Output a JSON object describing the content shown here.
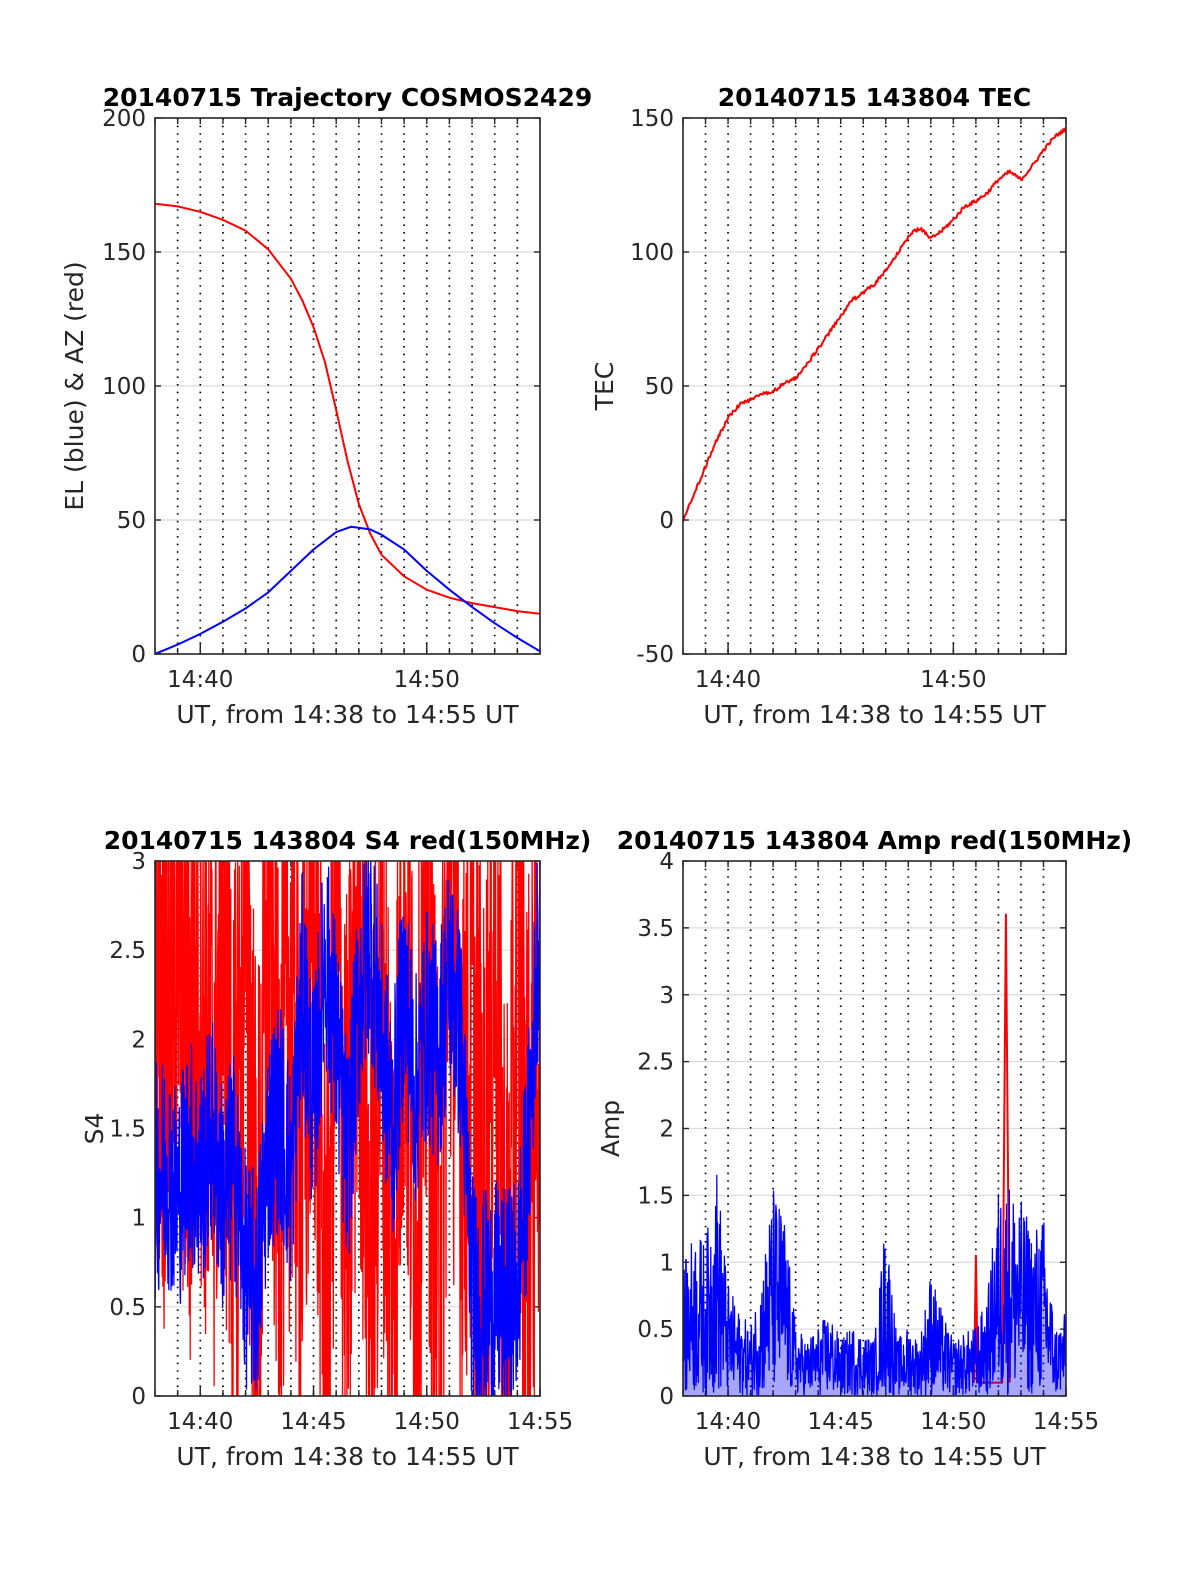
{
  "chart_data": [
    {
      "type": "line",
      "title": "20140715 Trajectory COSMOS2429",
      "xlabel": "UT, from 14:38 to 14:55 UT",
      "ylabel": "EL (blue) & AZ (red)",
      "xlim": [
        "14:38",
        "14:55"
      ],
      "xticks": [
        "14:40",
        "14:50"
      ],
      "ylim": [
        0,
        200
      ],
      "yticks": [
        "0",
        "50",
        "100",
        "150",
        "200"
      ],
      "grid": true,
      "series": [
        {
          "color": "#ff0000",
          "x": [
            "14:38:00",
            "14:39:00",
            "14:40:00",
            "14:41:00",
            "14:42:00",
            "14:43:00",
            "14:44:00",
            "14:44:30",
            "14:45:00",
            "14:45:30",
            "14:46:00",
            "14:46:30",
            "14:47:00",
            "14:47:30",
            "14:48:00",
            "14:49:00",
            "14:50:00",
            "14:51:00",
            "14:52:00",
            "14:53:00",
            "14:54:00",
            "14:55:00"
          ],
          "values": [
            168,
            167,
            165,
            162,
            158,
            151,
            140,
            132,
            122,
            109,
            91,
            72,
            56,
            45,
            37,
            29,
            24,
            21,
            19,
            17.5,
            16,
            15
          ]
        },
        {
          "color": "#0000ff",
          "x": [
            "14:38:00",
            "14:39:00",
            "14:40:00",
            "14:41:00",
            "14:42:00",
            "14:43:00",
            "14:44:00",
            "14:45:00",
            "14:46:00",
            "14:46:40",
            "14:47:30",
            "14:48:00",
            "14:49:00",
            "14:50:00",
            "14:51:00",
            "14:52:00",
            "14:53:00",
            "14:54:00",
            "14:55:00"
          ],
          "values": [
            0,
            3.5,
            7.5,
            12,
            17,
            23,
            31,
            39,
            45.5,
            47.5,
            46.5,
            44.5,
            39,
            31,
            24,
            17.5,
            11.5,
            6,
            1
          ]
        }
      ]
    },
    {
      "type": "line",
      "title": "20140715 143804 TEC",
      "xlabel": "UT, from 14:38 to 14:55 UT",
      "ylabel": "TEC",
      "xlim": [
        "14:38",
        "14:55"
      ],
      "xticks": [
        "14:40",
        "14:50"
      ],
      "ylim": [
        -50,
        150
      ],
      "yticks": [
        "-50",
        "0",
        "50",
        "100",
        "150"
      ],
      "grid": true,
      "series": [
        {
          "color": "#ff0000",
          "x": [
            "14:38:00",
            "14:38:30",
            "14:39:00",
            "14:39:30",
            "14:40:00",
            "14:40:30",
            "14:41:00",
            "14:41:30",
            "14:42:00",
            "14:42:30",
            "14:43:00",
            "14:43:30",
            "14:44:00",
            "14:44:30",
            "14:45:00",
            "14:45:30",
            "14:46:00",
            "14:46:30",
            "14:47:00",
            "14:47:30",
            "14:48:00",
            "14:48:30",
            "14:49:00",
            "14:49:30",
            "14:50:00",
            "14:50:30",
            "14:51:00",
            "14:51:30",
            "14:52:00",
            "14:52:30",
            "14:53:00",
            "14:53:30",
            "14:54:00",
            "14:54:30",
            "14:55:00"
          ],
          "values": [
            0,
            10,
            20,
            30,
            38,
            43,
            45,
            47,
            48,
            51,
            53,
            58,
            64,
            70,
            76,
            82,
            85,
            88,
            93,
            99,
            106,
            109,
            105,
            108,
            112,
            117,
            119,
            122,
            127,
            130,
            127,
            132,
            138,
            143,
            146
          ]
        }
      ]
    },
    {
      "type": "line",
      "title": "20140715 143804 S4 red(150MHz)",
      "xlabel": "UT, from 14:38 to 14:55 UT",
      "ylabel": "S4",
      "xlim": [
        "14:38",
        "14:55"
      ],
      "xticks": [
        "14:40",
        "14:45",
        "14:50",
        "14:55"
      ],
      "ylim": [
        0,
        3
      ],
      "yticks": [
        "0",
        "0.5",
        "1",
        "1.5",
        "2",
        "2.5",
        "3"
      ],
      "grid": true,
      "series": [
        {
          "color": "#ff0000",
          "x": [
            "14:38:00",
            "14:38:30",
            "14:39:00",
            "14:39:30",
            "14:40:00",
            "14:40:30",
            "14:41:00",
            "14:41:30",
            "14:42:00",
            "14:42:30",
            "14:43:00",
            "14:43:30",
            "14:44:00",
            "14:44:30",
            "14:45:00",
            "14:45:30",
            "14:46:00",
            "14:46:30",
            "14:47:00",
            "14:47:30",
            "14:48:00",
            "14:48:30",
            "14:49:00",
            "14:49:30",
            "14:50:00",
            "14:50:30",
            "14:51:00",
            "14:51:30",
            "14:52:00",
            "14:52:30",
            "14:53:00",
            "14:53:30",
            "14:54:00",
            "14:54:30",
            "14:55:00"
          ],
          "values": [
            2.8,
            2.1,
            2.9,
            1.8,
            2.6,
            1.6,
            2.7,
            1.0,
            3.0,
            0.3,
            2.9,
            1.4,
            2.4,
            1.3,
            3.0,
            0.2,
            2.7,
            0.8,
            3.0,
            0.5,
            2.5,
            0.6,
            2.9,
            0.7,
            2.6,
            0.4,
            3.0,
            1.8,
            2.0,
            0.9,
            2.7,
            0.3,
            2.2,
            1.1,
            2.4
          ]
        },
        {
          "color": "#0000ff",
          "x": [
            "14:38:00",
            "14:38:30",
            "14:39:00",
            "14:39:30",
            "14:40:00",
            "14:40:30",
            "14:41:00",
            "14:41:30",
            "14:42:00",
            "14:42:30",
            "14:43:00",
            "14:43:30",
            "14:44:00",
            "14:44:30",
            "14:45:00",
            "14:45:30",
            "14:46:00",
            "14:46:30",
            "14:47:00",
            "14:47:30",
            "14:48:00",
            "14:48:30",
            "14:49:00",
            "14:49:30",
            "14:50:00",
            "14:50:30",
            "14:51:00",
            "14:51:30",
            "14:52:00",
            "14:52:30",
            "14:53:00",
            "14:53:30",
            "14:54:00",
            "14:54:30",
            "14:55:00"
          ],
          "values": [
            1.2,
            1.3,
            1.1,
            1.4,
            1.2,
            1.5,
            1.1,
            1.3,
            0.7,
            0.6,
            1.4,
            1.6,
            1.2,
            2.3,
            1.6,
            2.5,
            2.0,
            1.3,
            2.2,
            2.6,
            2.0,
            1.5,
            2.3,
            1.7,
            2.1,
            1.9,
            2.4,
            2.0,
            0.6,
            0.5,
            0.55,
            0.5,
            0.6,
            1.4,
            2.8
          ]
        }
      ]
    },
    {
      "type": "line",
      "title": "20140715 143804 Amp red(150MHz)",
      "xlabel": "UT, from 14:38 to 14:55 UT",
      "ylabel": "Amp",
      "xlim": [
        "14:38",
        "14:55"
      ],
      "xticks": [
        "14:40",
        "14:45",
        "14:50",
        "14:55"
      ],
      "ylim": [
        0,
        4
      ],
      "yticks": [
        "0",
        "0.5",
        "1",
        "1.5",
        "2",
        "2.5",
        "3",
        "3.5",
        "4"
      ],
      "grid": true,
      "series": [
        {
          "color": "#ff0000",
          "x": [
            "14:50:55",
            "14:51:00",
            "14:51:05",
            "14:52:10",
            "14:52:20",
            "14:52:30"
          ],
          "values": [
            0.1,
            1.05,
            0.1,
            0.1,
            3.6,
            0.1
          ]
        },
        {
          "color": "#0000ff",
          "x": [
            "14:38:00",
            "14:38:30",
            "14:39:00",
            "14:39:30",
            "14:40:00",
            "14:40:30",
            "14:41:00",
            "14:41:30",
            "14:42:00",
            "14:42:30",
            "14:43:00",
            "14:43:30",
            "14:44:00",
            "14:44:30",
            "14:45:00",
            "14:45:30",
            "14:46:00",
            "14:46:30",
            "14:47:00",
            "14:47:30",
            "14:48:00",
            "14:48:30",
            "14:49:00",
            "14:49:30",
            "14:50:00",
            "14:50:30",
            "14:51:00",
            "14:51:30",
            "14:52:00",
            "14:52:30",
            "14:53:00",
            "14:53:30",
            "14:54:00",
            "14:54:30",
            "14:55:00"
          ],
          "values": [
            0.9,
            1.2,
            1.1,
            1.65,
            0.8,
            0.6,
            0.5,
            0.9,
            1.5,
            1.3,
            0.5,
            0.4,
            0.5,
            0.6,
            0.4,
            0.5,
            0.45,
            0.4,
            1.3,
            0.4,
            0.5,
            0.4,
            0.9,
            0.6,
            0.4,
            0.45,
            0.5,
            0.7,
            1.5,
            1.55,
            1.4,
            1.2,
            1.3,
            0.5,
            0.6
          ]
        }
      ]
    }
  ]
}
